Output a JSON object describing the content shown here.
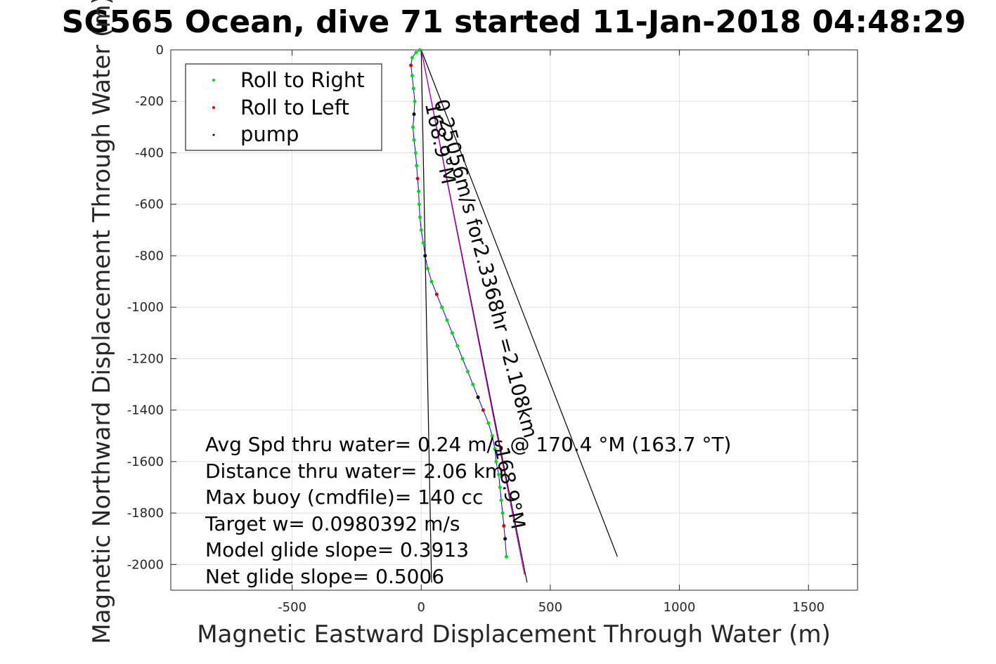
{
  "chart_data": {
    "type": "line",
    "title": "SG565 Ocean, dive 71 started 11-Jan-2018 04:48:29",
    "xlabel": "Magnetic Eastward Displacement Through Water (m)",
    "ylabel": "Magnetic Northward Displacement Through Water (m)",
    "xlim": [
      -970,
      1690
    ],
    "ylim": [
      -2100,
      0
    ],
    "xticks": [
      -500,
      0,
      500,
      1000,
      1500
    ],
    "yticks": [
      0,
      -200,
      -400,
      -600,
      -800,
      -1000,
      -1200,
      -1400,
      -1600,
      -1800,
      -2000
    ],
    "xtick_labels": [
      "-500",
      "0",
      "500",
      "1000",
      "1500"
    ],
    "ytick_labels": [
      "0",
      "-200",
      "-400",
      "-600",
      "-800",
      "-1000",
      "-1200",
      "-1400",
      "-1600",
      "-1800",
      "-2000"
    ],
    "grid": true,
    "legend_position": "top-left",
    "legend": [
      {
        "label": "Roll to Right",
        "color": "#00e000"
      },
      {
        "label": "Roll to Left",
        "color": "#e00000"
      },
      {
        "label": "pump",
        "color": "#000000"
      }
    ],
    "track": {
      "color": "#0000ff",
      "x": [
        -5,
        -20,
        -35,
        -40,
        -35,
        -30,
        -25,
        -28,
        -32,
        -28,
        -22,
        -18,
        -14,
        -10,
        -8,
        -5,
        0,
        8,
        15,
        25,
        40,
        60,
        80,
        100,
        120,
        140,
        160,
        180,
        200,
        220,
        240,
        260,
        275,
        285,
        290,
        300,
        305,
        310,
        315,
        320,
        325,
        330
      ],
      "y": [
        0,
        -10,
        -30,
        -60,
        -100,
        -150,
        -200,
        -250,
        -300,
        -350,
        -400,
        -450,
        -500,
        -550,
        -600,
        -650,
        -700,
        -750,
        -800,
        -850,
        -900,
        -950,
        -1000,
        -1050,
        -1100,
        -1150,
        -1200,
        -1250,
        -1300,
        -1350,
        -1400,
        -1450,
        -1500,
        -1550,
        -1600,
        -1650,
        -1700,
        -1750,
        -1800,
        -1850,
        -1900,
        -1970
      ]
    },
    "lines": [
      {
        "name": "line-heading-vector",
        "color": "#000000",
        "x": [
          0,
          40
        ],
        "y": [
          0,
          -2070
        ]
      },
      {
        "name": "line-net-displacement",
        "color": "#000000",
        "x": [
          0,
          410
        ],
        "y": [
          0,
          -2070
        ]
      },
      {
        "name": "line-current-vector",
        "color": "#000000",
        "x": [
          0,
          760
        ],
        "y": [
          0,
          -1970
        ]
      },
      {
        "name": "line-model-track",
        "color": "#cc00cc",
        "x": [
          0,
          400
        ],
        "y": [
          0,
          -2040
        ]
      }
    ],
    "annotations": [
      "Avg Spd thru water=  0.24 m/s @ 170.4 °M (163.7 °T)",
      "Distance thru water=  2.06 km",
      "Max buoy (cmdfile)= 140 cc",
      "Target w= 0.0980392 m/s",
      "Model glide slope= 0.3913",
      "Net glide slope= 0.5006"
    ],
    "rotated_labels": [
      {
        "text": "168.9°M",
        "x": 15,
        "y": -210,
        "angle": 78
      },
      {
        "text": "0.25056m/s for2.3368hr =2.108km",
        "x": 50,
        "y": -200,
        "angle": 75
      },
      {
        "text": "168.9°M",
        "x": 285,
        "y": -1550,
        "angle": 78
      }
    ]
  }
}
